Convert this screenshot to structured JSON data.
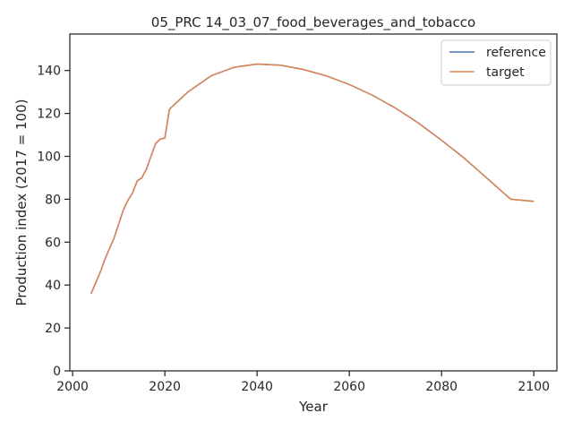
{
  "chart_data": {
    "type": "line",
    "title": "05_PRC 14_03_07_food_beverages_and_tobacco",
    "xlabel": "Year",
    "ylabel": "Production index (2017 = 100)",
    "xlim": [
      1999.4,
      2105.0
    ],
    "ylim": [
      0,
      157
    ],
    "xticks": [
      2000,
      2020,
      2040,
      2060,
      2080,
      2100
    ],
    "yticks": [
      0,
      20,
      40,
      60,
      80,
      100,
      120,
      140
    ],
    "grid": false,
    "legend_position": "top-right",
    "series": [
      {
        "name": "reference",
        "color": "#4c72b0",
        "x": [
          2004,
          2005,
          2006,
          2007,
          2008,
          2009,
          2010,
          2011,
          2012,
          2013,
          2014,
          2015,
          2016,
          2017,
          2018,
          2019,
          2020,
          2021,
          2022,
          2025,
          2030,
          2035,
          2040,
          2045,
          2050,
          2055,
          2060,
          2065,
          2070,
          2075,
          2080,
          2085,
          2090,
          2095,
          2100
        ],
        "y": [
          36,
          41,
          46,
          52,
          57,
          62,
          68.5,
          75,
          79.5,
          83,
          88.5,
          90,
          94,
          100,
          106,
          108,
          108.5,
          122,
          124,
          130,
          137.5,
          141.5,
          143,
          142.5,
          140.5,
          137.5,
          133.5,
          128.5,
          122.5,
          115.5,
          107.5,
          99,
          89.5,
          80,
          79
        ]
      },
      {
        "name": "target",
        "color": "#dd8452",
        "x": [
          2004,
          2005,
          2006,
          2007,
          2008,
          2009,
          2010,
          2011,
          2012,
          2013,
          2014,
          2015,
          2016,
          2017,
          2018,
          2019,
          2020,
          2021,
          2022,
          2025,
          2030,
          2035,
          2040,
          2045,
          2050,
          2055,
          2060,
          2065,
          2070,
          2075,
          2080,
          2085,
          2090,
          2095,
          2100
        ],
        "y": [
          36,
          41,
          46,
          52,
          57,
          62,
          68.5,
          75,
          79.5,
          83,
          88.5,
          90,
          94,
          100,
          106,
          108,
          108.5,
          122,
          124,
          130,
          137.5,
          141.5,
          143,
          142.5,
          140.5,
          137.5,
          133.5,
          128.5,
          122.5,
          115.5,
          107.5,
          99,
          89.5,
          80,
          79
        ]
      }
    ]
  }
}
